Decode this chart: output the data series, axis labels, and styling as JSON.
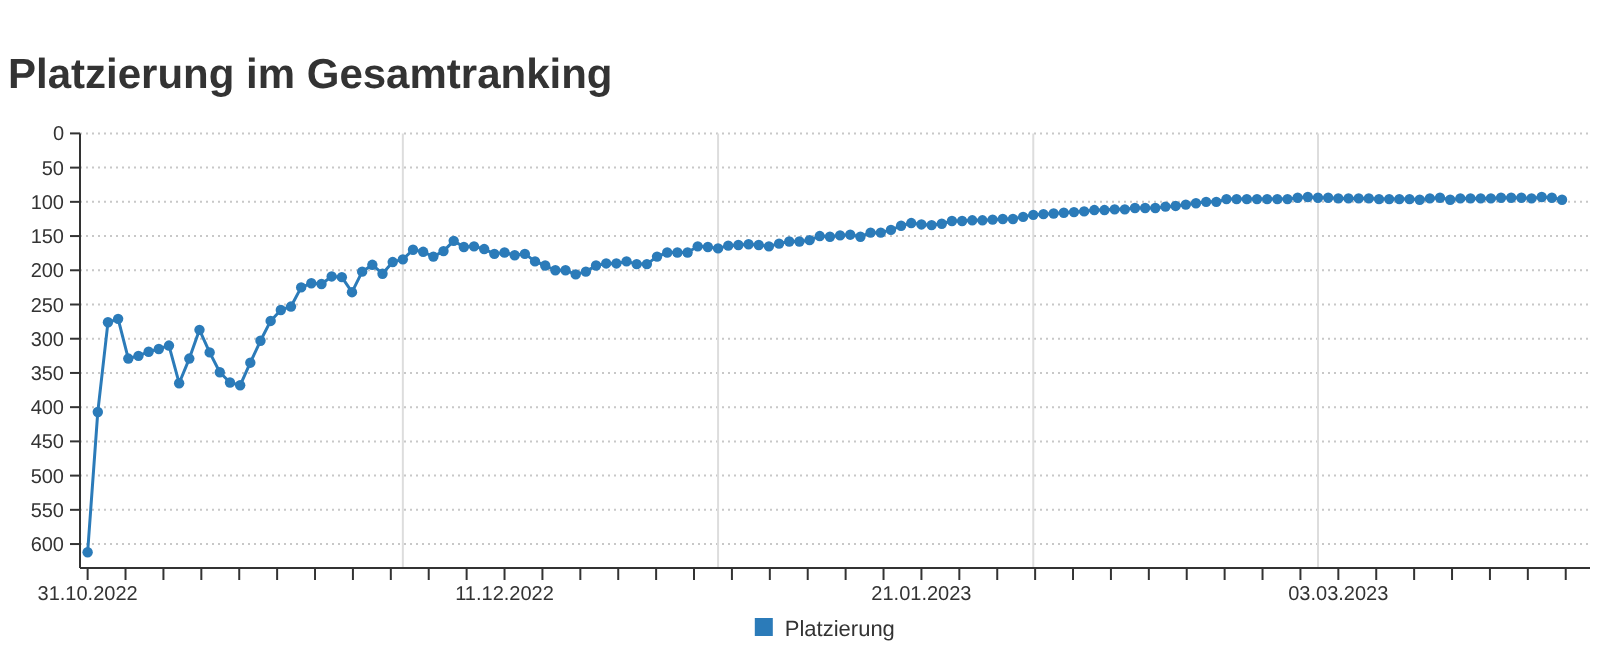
{
  "chart_data": {
    "type": "line",
    "title": "Platzierung im Gesamtranking",
    "x": [
      "2022-10-31",
      "2022-11-01",
      "2022-11-02",
      "2022-11-03",
      "2022-11-04",
      "2022-11-05",
      "2022-11-06",
      "2022-11-07",
      "2022-11-08",
      "2022-11-09",
      "2022-11-10",
      "2022-11-11",
      "2022-11-12",
      "2022-11-13",
      "2022-11-14",
      "2022-11-15",
      "2022-11-16",
      "2022-11-17",
      "2022-11-18",
      "2022-11-19",
      "2022-11-20",
      "2022-11-21",
      "2022-11-22",
      "2022-11-23",
      "2022-11-24",
      "2022-11-25",
      "2022-11-26",
      "2022-11-27",
      "2022-11-28",
      "2022-11-29",
      "2022-11-30",
      "2022-12-01",
      "2022-12-02",
      "2022-12-03",
      "2022-12-04",
      "2022-12-05",
      "2022-12-06",
      "2022-12-07",
      "2022-12-08",
      "2022-12-09",
      "2022-12-10",
      "2022-12-11",
      "2022-12-12",
      "2022-12-13",
      "2022-12-14",
      "2022-12-15",
      "2022-12-16",
      "2022-12-17",
      "2022-12-18",
      "2022-12-19",
      "2022-12-20",
      "2022-12-21",
      "2022-12-22",
      "2022-12-23",
      "2022-12-24",
      "2022-12-25",
      "2022-12-26",
      "2022-12-27",
      "2022-12-28",
      "2022-12-29",
      "2022-12-30",
      "2022-12-31",
      "2023-01-01",
      "2023-01-02",
      "2023-01-03",
      "2023-01-04",
      "2023-01-05",
      "2023-01-06",
      "2023-01-07",
      "2023-01-08",
      "2023-01-09",
      "2023-01-10",
      "2023-01-11",
      "2023-01-12",
      "2023-01-13",
      "2023-01-14",
      "2023-01-15",
      "2023-01-16",
      "2023-01-17",
      "2023-01-18",
      "2023-01-19",
      "2023-01-20",
      "2023-01-21",
      "2023-01-22",
      "2023-01-23",
      "2023-01-24",
      "2023-01-25",
      "2023-01-26",
      "2023-01-27",
      "2023-01-28",
      "2023-01-29",
      "2023-01-30",
      "2023-01-31",
      "2023-02-01",
      "2023-02-02",
      "2023-02-03",
      "2023-02-04",
      "2023-02-05",
      "2023-02-06",
      "2023-02-07",
      "2023-02-08",
      "2023-02-09",
      "2023-02-10",
      "2023-02-11",
      "2023-02-12",
      "2023-02-13",
      "2023-02-14",
      "2023-02-15",
      "2023-02-16",
      "2023-02-17",
      "2023-02-18",
      "2023-02-19",
      "2023-02-20",
      "2023-02-21",
      "2023-02-22",
      "2023-02-23",
      "2023-02-24",
      "2023-02-25",
      "2023-02-26",
      "2023-02-27",
      "2023-02-28",
      "2023-03-01",
      "2023-03-02",
      "2023-03-03",
      "2023-03-04",
      "2023-03-05",
      "2023-03-06",
      "2023-03-07",
      "2023-03-08",
      "2023-03-09",
      "2023-03-10",
      "2023-03-11",
      "2023-03-12",
      "2023-03-13",
      "2023-03-14",
      "2023-03-15",
      "2023-03-16",
      "2023-03-17",
      "2023-03-18",
      "2023-03-19",
      "2023-03-20",
      "2023-03-21",
      "2023-03-22",
      "2023-03-23",
      "2023-03-24",
      "2023-03-25"
    ],
    "series": [
      {
        "name": "Platzierung",
        "color": "#2b7bb9",
        "values": [
          612,
          407,
          276,
          271,
          329,
          325,
          319,
          315,
          310,
          365,
          329,
          287,
          320,
          349,
          364,
          368,
          335,
          303,
          274,
          258,
          253,
          225,
          219,
          220,
          209,
          210,
          232,
          202,
          192,
          205,
          188,
          184,
          170,
          173,
          180,
          172,
          157,
          166,
          165,
          169,
          176,
          174,
          178,
          176,
          187,
          193,
          200,
          200,
          206,
          202,
          193,
          190,
          190,
          187,
          191,
          191,
          180,
          174,
          174,
          174,
          165,
          166,
          168,
          164,
          163,
          162,
          163,
          165,
          161,
          158,
          158,
          156,
          150,
          151,
          149,
          148,
          151,
          145,
          145,
          141,
          135,
          131,
          133,
          134,
          132,
          128,
          128,
          127,
          127,
          126,
          125,
          125,
          122,
          119,
          118,
          117,
          116,
          115,
          114,
          112,
          112,
          111,
          111,
          109,
          109,
          109,
          107,
          106,
          104,
          102,
          100,
          100,
          96,
          96,
          96,
          96,
          96,
          96,
          96,
          94,
          93,
          94,
          94,
          95,
          95,
          95,
          95,
          96,
          96,
          96,
          96,
          97,
          95,
          94,
          97,
          95,
          95,
          95,
          95,
          94,
          94,
          94,
          95,
          93,
          94,
          97
        ]
      }
    ],
    "xlim": [
      "2022-10-30T06:00",
      "2023-03-27T18:00"
    ],
    "xticks": [
      {
        "value": "2022-10-31",
        "label": "31.10.2022"
      },
      {
        "value": "2022-11-03T17:27",
        "label": null
      },
      {
        "value": "2022-11-07T10:55",
        "label": null
      },
      {
        "value": "2022-11-11T04:22",
        "label": null
      },
      {
        "value": "2022-11-14T21:49",
        "label": null
      },
      {
        "value": "2022-11-18T15:16",
        "label": null
      },
      {
        "value": "2022-11-22T08:44",
        "label": null
      },
      {
        "value": "2022-11-26T02:11",
        "label": null
      },
      {
        "value": "2022-11-29T19:38",
        "label": null
      },
      {
        "value": "2022-12-03T13:05",
        "label": null
      },
      {
        "value": "2022-12-07T06:33",
        "label": null
      },
      {
        "value": "2022-12-11",
        "label": "11.12.2022"
      },
      {
        "value": "2022-12-14T17:27",
        "label": null
      },
      {
        "value": "2022-12-18T10:55",
        "label": null
      },
      {
        "value": "2022-12-22T04:22",
        "label": null
      },
      {
        "value": "2022-12-25T21:49",
        "label": null
      },
      {
        "value": "2022-12-29T15:16",
        "label": null
      },
      {
        "value": "2023-01-02T08:44",
        "label": null
      },
      {
        "value": "2023-01-06T02:11",
        "label": null
      },
      {
        "value": "2023-01-09T19:38",
        "label": null
      },
      {
        "value": "2023-01-13T13:05",
        "label": null
      },
      {
        "value": "2023-01-17T06:33",
        "label": null
      },
      {
        "value": "2023-01-21",
        "label": "21.01.2023"
      },
      {
        "value": "2023-01-24T17:27",
        "label": null
      },
      {
        "value": "2023-01-28T10:55",
        "label": null
      },
      {
        "value": "2023-02-01T04:22",
        "label": null
      },
      {
        "value": "2023-02-04T21:49",
        "label": null
      },
      {
        "value": "2023-02-08T15:16",
        "label": null
      },
      {
        "value": "2023-02-12T08:44",
        "label": null
      },
      {
        "value": "2023-02-16T02:11",
        "label": null
      },
      {
        "value": "2023-02-19T19:38",
        "label": null
      },
      {
        "value": "2023-02-23T13:05",
        "label": null
      },
      {
        "value": "2023-02-27T06:33",
        "label": null
      },
      {
        "value": "2023-03-03",
        "label": "03.03.2023"
      },
      {
        "value": "2023-03-06T17:27",
        "label": null
      },
      {
        "value": "2023-03-10T10:55",
        "label": null
      },
      {
        "value": "2023-03-14T04:22",
        "label": null
      },
      {
        "value": "2023-03-17T21:49",
        "label": null
      },
      {
        "value": "2023-03-21T15:16",
        "label": null
      },
      {
        "value": "2023-03-25T08:44",
        "label": null
      }
    ],
    "ylim": [
      635,
      0
    ],
    "yticks": [
      0,
      50,
      100,
      150,
      200,
      250,
      300,
      350,
      400,
      450,
      500,
      550,
      600
    ],
    "ref_lines": [
      {
        "axis": "x",
        "value": "2022-12-01",
        "color": "#dddddd"
      },
      {
        "axis": "x",
        "value": "2023-01-01",
        "color": "#dddddd"
      },
      {
        "axis": "x",
        "value": "2023-02-01",
        "color": "#dddddd"
      },
      {
        "axis": "x",
        "value": "2023-03-01",
        "color": "#dddddd"
      }
    ],
    "grid": "y",
    "legend": "bottom",
    "marker": "circle",
    "line_style": "solid"
  }
}
